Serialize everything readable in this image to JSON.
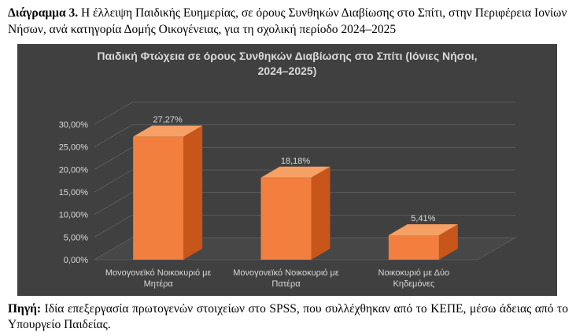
{
  "caption": {
    "label": "Διάγραμμα 3.",
    "text": " Η έλλειψη Παιδικής Ευημερίας, σε όρους Συνθηκών Διαβίωσης στο Σπίτι, στην Περιφέρεια Ιονίων Νήσων, ανά κατηγορία Δομής Οικογένειας, για τη σχολική περίοδο 2024–2025"
  },
  "source": {
    "label": "Πηγή:",
    "text": " Ιδία επεξεργασία πρωτογενών στοιχείων στο SPSS, που συλλέχθηκαν από το ΚΕΠΕ, μέσω άδειας από το Υπουργείο Παιδείας."
  },
  "chart_data": {
    "type": "bar",
    "title_lines": [
      "Παιδική Φτώχεια σε όρους Συνθηκών Διαβίωσης στο Σπίτι (Ιόνιες Νήσοι,",
      "2024–2025)"
    ],
    "categories": [
      [
        "Μονογονεϊκό Νοικοκυριό με",
        "Μητέρα"
      ],
      [
        "Μονογονεϊκό Νοικοκυριό με",
        "Πατέρα"
      ],
      [
        "Νοικοκυριό με Δύο",
        "Κηδεμόνες"
      ]
    ],
    "values": [
      27.27,
      18.18,
      5.41
    ],
    "data_labels": [
      "27,27%",
      "18,18%",
      "5,41%"
    ],
    "yticks": [
      "0,00%",
      "5,00%",
      "10,00%",
      "15,00%",
      "20,00%",
      "25,00%",
      "30,00%"
    ],
    "ylim": [
      0,
      30
    ],
    "grid": true,
    "colors": {
      "background": "#404040",
      "bar_front": "#f27f3d",
      "bar_side": "#c8551a",
      "bar_top": "#f7a066",
      "text": "#d9d9d9",
      "grid": "#5a5a5a"
    }
  }
}
